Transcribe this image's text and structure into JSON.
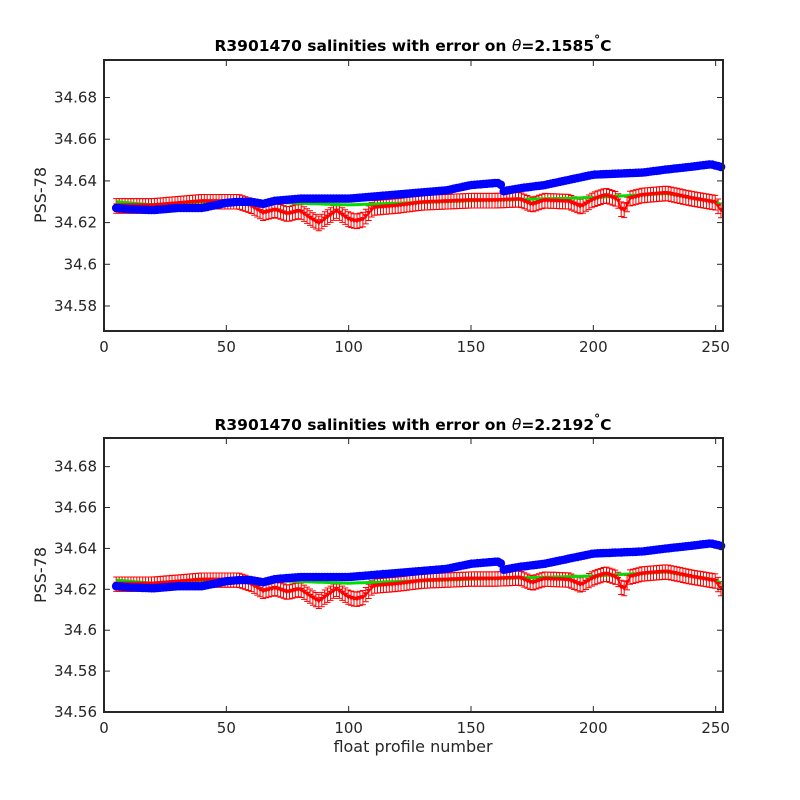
{
  "chart_data": [
    {
      "type": "scatter",
      "title_prefix": "R3901470 salinities with error on ",
      "title_theta": "θ",
      "title_value": "=2.1585",
      "title_deg": "°",
      "title_unit": "C",
      "xlabel": "",
      "ylabel": "PSS-78",
      "xlim": [
        0,
        253
      ],
      "ylim": [
        34.568,
        34.698
      ],
      "xticks": [
        0,
        50,
        100,
        150,
        200,
        250
      ],
      "yticks": [
        34.58,
        34.6,
        34.62,
        34.64,
        34.66,
        34.68
      ],
      "ytick_labels": [
        "34.58",
        "34.6",
        "34.62",
        "34.64",
        "34.66",
        "34.68"
      ],
      "grid": false,
      "offset": 0,
      "series": [
        {
          "role": "raw",
          "color": "#0000ff",
          "marker": "circle",
          "points": [
            [
              5,
              34.627
            ],
            [
              10,
              34.6265
            ],
            [
              20,
              34.626
            ],
            [
              30,
              34.627
            ],
            [
              40,
              34.627
            ],
            [
              50,
              34.6295
            ],
            [
              55,
              34.63
            ],
            [
              60,
              34.63
            ],
            [
              65,
              34.629
            ],
            [
              70,
              34.6305
            ],
            [
              80,
              34.6315
            ],
            [
              90,
              34.6315
            ],
            [
              100,
              34.6315
            ],
            [
              110,
              34.6325
            ],
            [
              120,
              34.6335
            ],
            [
              130,
              34.6345
            ],
            [
              140,
              34.6355
            ],
            [
              150,
              34.638
            ],
            [
              155,
              34.6385
            ],
            [
              160,
              34.639
            ],
            [
              162,
              34.639
            ],
            [
              163,
              34.635
            ],
            [
              170,
              34.6365
            ],
            [
              180,
              34.638
            ],
            [
              190,
              34.6405
            ],
            [
              200,
              34.643
            ],
            [
              210,
              34.6435
            ],
            [
              220,
              34.644
            ],
            [
              230,
              34.6455
            ],
            [
              240,
              34.6468
            ],
            [
              248,
              34.648
            ],
            [
              253,
              34.6465
            ]
          ]
        },
        {
          "role": "mapped",
          "color": "#00dd00",
          "points": [
            [
              5,
              34.63
            ],
            [
              20,
              34.6285
            ],
            [
              50,
              34.6305
            ],
            [
              100,
              34.6285
            ],
            [
              150,
              34.6305
            ],
            [
              200,
              34.632
            ],
            [
              230,
              34.634
            ],
            [
              240,
              34.632
            ],
            [
              250,
              34.63
            ],
            [
              253,
              34.628
            ]
          ]
        },
        {
          "role": "calibrated",
          "color": "#ff0000",
          "marker": "triangle-down",
          "error": 0.0035,
          "points": [
            [
              5,
              34.628
            ],
            [
              10,
              34.628
            ],
            [
              20,
              34.628
            ],
            [
              30,
              34.629
            ],
            [
              40,
              34.63
            ],
            [
              50,
              34.63
            ],
            [
              55,
              34.63
            ],
            [
              60,
              34.628
            ],
            [
              65,
              34.6245
            ],
            [
              70,
              34.626
            ],
            [
              75,
              34.624
            ],
            [
              80,
              34.6255
            ],
            [
              85,
              34.6215
            ],
            [
              88,
              34.6195
            ],
            [
              90,
              34.6215
            ],
            [
              95,
              34.6255
            ],
            [
              100,
              34.6215
            ],
            [
              103,
              34.6205
            ],
            [
              106,
              34.6215
            ],
            [
              110,
              34.627
            ],
            [
              120,
              34.628
            ],
            [
              130,
              34.6295
            ],
            [
              140,
              34.63
            ],
            [
              150,
              34.6305
            ],
            [
              160,
              34.6305
            ],
            [
              170,
              34.631
            ],
            [
              175,
              34.6285
            ],
            [
              180,
              34.6305
            ],
            [
              190,
              34.63
            ],
            [
              195,
              34.6275
            ],
            [
              200,
              34.631
            ],
            [
              205,
              34.633
            ],
            [
              210,
              34.631
            ],
            [
              212,
              34.6245
            ],
            [
              215,
              34.6315
            ],
            [
              220,
              34.633
            ],
            [
              230,
              34.634
            ],
            [
              240,
              34.6315
            ],
            [
              250,
              34.6295
            ],
            [
              253,
              34.6245
            ]
          ]
        }
      ]
    },
    {
      "type": "scatter",
      "title_prefix": "R3901470 salinities with error on ",
      "title_theta": "θ",
      "title_value": "=2.2192",
      "title_deg": "°",
      "title_unit": "C",
      "xlabel": "float profile number",
      "ylabel": "PSS-78",
      "xlim": [
        0,
        253
      ],
      "ylim": [
        34.56,
        34.694
      ],
      "xticks": [
        0,
        50,
        100,
        150,
        200,
        250
      ],
      "yticks": [
        34.56,
        34.58,
        34.6,
        34.62,
        34.64,
        34.66,
        34.68
      ],
      "ytick_labels": [
        "34.56",
        "34.58",
        "34.6",
        "34.62",
        "34.64",
        "34.66",
        "34.68"
      ],
      "grid": false,
      "offset": -0.0055,
      "series": [
        {
          "role": "raw",
          "color": "#0000ff",
          "marker": "circle"
        },
        {
          "role": "mapped",
          "color": "#00dd00"
        },
        {
          "role": "calibrated",
          "color": "#ff0000",
          "marker": "triangle-down",
          "error": 0.0035
        }
      ]
    }
  ]
}
